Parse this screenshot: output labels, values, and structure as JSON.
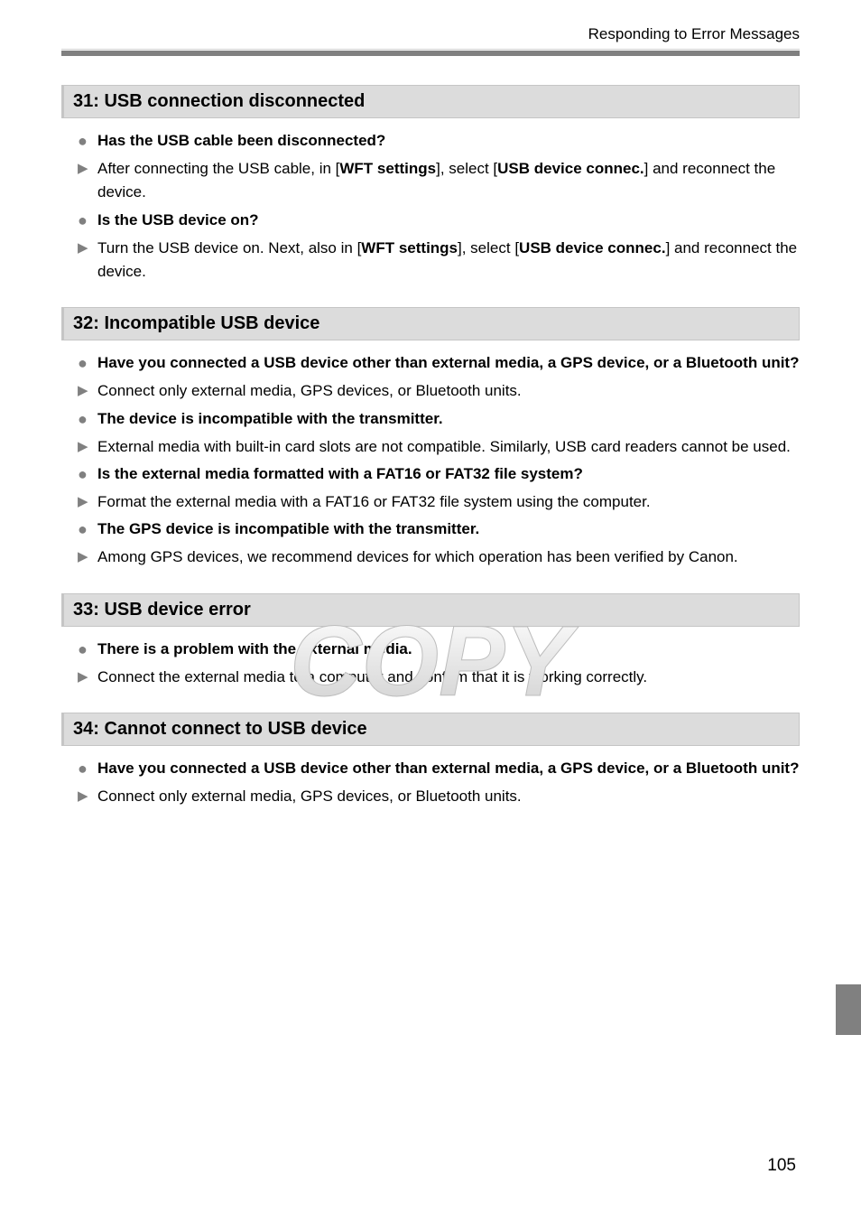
{
  "header": {
    "breadcrumb": "Responding to Error Messages"
  },
  "sections": [
    {
      "heading": "31:  USB connection disconnected",
      "items": [
        {
          "type": "dot",
          "bold": true,
          "text": "Has the USB cable been disconnected?"
        },
        {
          "type": "arrow",
          "bold": false,
          "parts": [
            "After connecting the USB cable, in [",
            {
              "b": "WFT settings"
            },
            "], select [",
            {
              "b": "USB device connec."
            },
            "] and reconnect the device."
          ]
        },
        {
          "type": "dot",
          "bold": true,
          "text": "Is the USB device on?"
        },
        {
          "type": "arrow",
          "bold": false,
          "parts": [
            "Turn the USB device on. Next, also in [",
            {
              "b": "WFT settings"
            },
            "], select [",
            {
              "b": "USB device connec."
            },
            "] and reconnect the device."
          ]
        }
      ]
    },
    {
      "heading": "32:  Incompatible USB device",
      "items": [
        {
          "type": "dot",
          "bold": true,
          "text": "Have you connected a USB device other than external media, a GPS device, or a Bluetooth unit?"
        },
        {
          "type": "arrow",
          "bold": false,
          "text": "Connect only external media, GPS devices, or Bluetooth units."
        },
        {
          "type": "dot",
          "bold": true,
          "text": "The device is incompatible with the transmitter."
        },
        {
          "type": "arrow",
          "bold": false,
          "text": "External media with built-in card slots are not compatible. Similarly, USB card readers cannot be used."
        },
        {
          "type": "dot",
          "bold": true,
          "text": "Is the external media formatted with a FAT16 or FAT32 file system?"
        },
        {
          "type": "arrow",
          "bold": false,
          "text": "Format the external media with a FAT16 or FAT32 file system using the computer."
        },
        {
          "type": "dot",
          "bold": true,
          "text": "The GPS device is incompatible with the transmitter."
        },
        {
          "type": "arrow",
          "bold": false,
          "text": "Among GPS devices, we recommend devices for which operation has been verified by Canon."
        }
      ]
    },
    {
      "heading": "33:  USB device error",
      "items": [
        {
          "type": "dot",
          "bold": true,
          "text": "There is a problem with the external media."
        },
        {
          "type": "arrow",
          "bold": false,
          "text": "Connect the external media to a computer and confirm that it is working correctly."
        }
      ]
    },
    {
      "heading": "34:  Cannot connect to USB device",
      "items": [
        {
          "type": "dot",
          "bold": true,
          "text": "Have you connected a USB device other than external media, a GPS device, or a Bluetooth unit?"
        },
        {
          "type": "arrow",
          "bold": false,
          "text": "Connect only external media, GPS devices, or Bluetooth units."
        }
      ]
    }
  ],
  "watermark_text": "COPY",
  "page_number": "105"
}
